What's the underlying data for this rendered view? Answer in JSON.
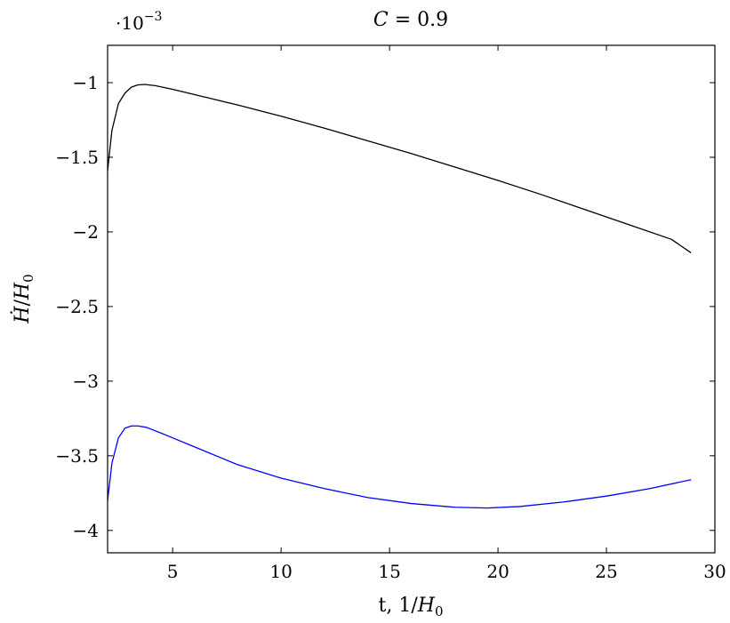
{
  "chart_data": {
    "type": "line",
    "title_var": "C",
    "title_eq": " = 0.9",
    "xlabel_main": "t, 1/",
    "xlabel_var": "H",
    "xlabel_sub": "0",
    "ylabel_dot": "Ḣ",
    "ylabel_main": "/",
    "ylabel_var": "H",
    "ylabel_sub": "0",
    "y_multiplier_base": "·10",
    "y_multiplier_exp": "−3",
    "xlim": [
      2,
      30
    ],
    "ylim": [
      -4.15,
      -0.75
    ],
    "xticks": [
      5,
      10,
      15,
      20,
      25,
      30
    ],
    "xtick_labels": [
      "5",
      "10",
      "15",
      "20",
      "25",
      "30"
    ],
    "yticks": [
      -1,
      -1.5,
      -2,
      -2.5,
      -3,
      -3.5,
      -4
    ],
    "ytick_labels": [
      "−1",
      "−1.5",
      "−2",
      "−2.5",
      "−3",
      "−3.5",
      "−4"
    ],
    "grid": false,
    "series": [
      {
        "color": "#000000",
        "x": [
          2.0,
          2.2,
          2.5,
          2.8,
          3.1,
          3.4,
          3.7,
          4.2,
          5,
          6,
          7,
          8,
          10,
          12,
          14,
          16,
          18,
          20,
          22,
          24,
          26,
          28,
          28.9
        ],
        "y": [
          -1.59,
          -1.32,
          -1.14,
          -1.07,
          -1.03,
          -1.015,
          -1.012,
          -1.02,
          -1.045,
          -1.08,
          -1.115,
          -1.15,
          -1.225,
          -1.305,
          -1.39,
          -1.475,
          -1.565,
          -1.655,
          -1.75,
          -1.85,
          -1.95,
          -2.05,
          -2.14
        ]
      },
      {
        "color": "#0000ff",
        "x": [
          2.0,
          2.2,
          2.5,
          2.8,
          3.1,
          3.4,
          3.8,
          4.5,
          5,
          6,
          8,
          10,
          12,
          14,
          16,
          18,
          19.5,
          21,
          23,
          25,
          27,
          28.9
        ],
        "y": [
          -3.8,
          -3.55,
          -3.38,
          -3.315,
          -3.3,
          -3.3,
          -3.31,
          -3.35,
          -3.38,
          -3.44,
          -3.56,
          -3.65,
          -3.72,
          -3.78,
          -3.82,
          -3.845,
          -3.85,
          -3.84,
          -3.81,
          -3.77,
          -3.72,
          -3.66
        ]
      }
    ]
  }
}
